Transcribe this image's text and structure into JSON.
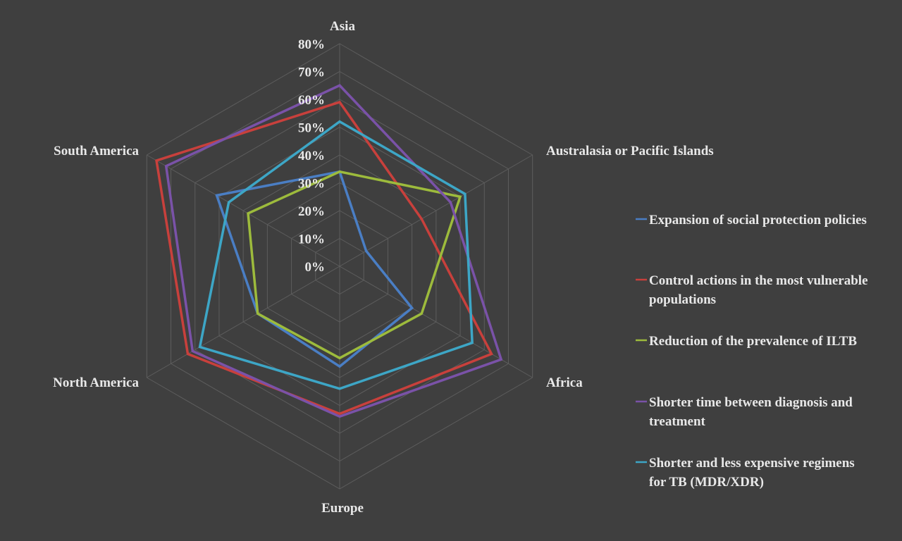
{
  "chart_data": {
    "type": "radar",
    "categories": [
      "Asia",
      "Australasia or Pacific Islands",
      "Africa",
      "Europe",
      "North America",
      "South America"
    ],
    "r_ticks": [
      "0%",
      "10%",
      "20%",
      "30%",
      "40%",
      "50%",
      "60%",
      "70%",
      "80%"
    ],
    "r_range": [
      0,
      80
    ],
    "grid": true,
    "legend_position": "right",
    "series": [
      {
        "name": "Expansion of social protection policies",
        "color": "#4a7ec4",
        "values": [
          34,
          11,
          30,
          36,
          34,
          51
        ]
      },
      {
        "name": "Control actions in the most vulnerable populations",
        "color": "#c8403c",
        "values": [
          59,
          34,
          63,
          53,
          63,
          76
        ]
      },
      {
        "name": "Reduction of the prevalence of ILTB",
        "color": "#9dbb3c",
        "values": [
          34,
          50,
          34,
          33,
          34,
          38
        ]
      },
      {
        "name": "Shorter time between diagnosis and  treatment",
        "color": "#7a52a8",
        "values": [
          65,
          46,
          67,
          54,
          61,
          72
        ]
      },
      {
        "name": " Shorter and less expensive regimens for TB (MDR/XDR)",
        "color": "#3da6c6",
        "values": [
          52,
          52,
          55,
          44,
          58,
          46
        ]
      }
    ]
  }
}
